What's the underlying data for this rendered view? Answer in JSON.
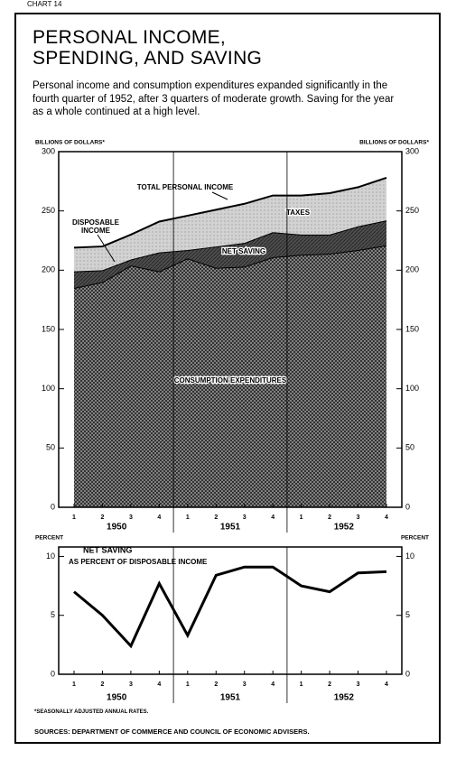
{
  "header": {
    "chart_label": "CHART 14",
    "title": "PERSONAL INCOME, SPENDING, AND SAVING",
    "description": "Personal income and consumption expenditures expanded significantly in the fourth quarter of 1952, after 3 quarters of moderate growth. Saving for the year as a whole continued at a high level."
  },
  "chart_data": [
    {
      "type": "area",
      "stacked": true,
      "y_label": "BILLIONS OF DOLLARS*",
      "y2_label": "BILLIONS OF DOLLARS*",
      "categories": [
        "1",
        "2",
        "3",
        "4",
        "1",
        "2",
        "3",
        "4",
        "1",
        "2",
        "3",
        "4"
      ],
      "groups": [
        "1950",
        "1951",
        "1952"
      ],
      "series": [
        {
          "name": "CONSUMPTION EXPENDITURES",
          "color": "#8c8c8c",
          "values": [
            185,
            190,
            204,
            199,
            210,
            202,
            203,
            211,
            213,
            214,
            217,
            221
          ]
        },
        {
          "name": "NET SAVING",
          "color": "#4d4d4d",
          "values": [
            14,
            10,
            5,
            16,
            7,
            18,
            20,
            21,
            17,
            16,
            20,
            21
          ]
        },
        {
          "name": "TAXES",
          "color": "#d2d2d2",
          "values": [
            20,
            20,
            21,
            26,
            29,
            31,
            33,
            31,
            33,
            35,
            33,
            36
          ]
        }
      ],
      "annotations": [
        "TOTAL PERSONAL INCOME",
        "DISPOSABLE INCOME"
      ],
      "ylim": [
        0,
        300
      ],
      "yticks": [
        0,
        50,
        100,
        150,
        200,
        250,
        300
      ],
      "y2lim": [
        0,
        300
      ],
      "y2ticks": [
        0,
        50,
        100,
        150,
        200,
        250,
        300
      ]
    },
    {
      "type": "line",
      "y_label": "PERCENT",
      "y2_label": "PERCENT",
      "categories": [
        "1",
        "2",
        "3",
        "4",
        "1",
        "2",
        "3",
        "4",
        "1",
        "2",
        "3",
        "4"
      ],
      "groups": [
        "1950",
        "1951",
        "1952"
      ],
      "series": [
        {
          "name": "NET SAVING",
          "color": "#000000",
          "values": [
            7.0,
            5.0,
            2.4,
            7.7,
            3.3,
            8.4,
            9.1,
            9.1,
            7.5,
            7.0,
            8.6,
            8.7
          ]
        }
      ],
      "annotations": [
        "AS PERCENT OF DISPOSABLE INCOME"
      ],
      "ylim": [
        0,
        10.8
      ],
      "yticks": [
        0,
        5,
        10
      ],
      "y2lim": [
        0,
        10.8
      ],
      "y2ticks": [
        0,
        5,
        10
      ]
    }
  ],
  "footnote": "*SEASONALLY ADJUSTED ANNUAL RATES.",
  "sources": "SOURCES: DEPARTMENT OF COMMERCE AND COUNCIL OF ECONOMIC ADVISERS."
}
